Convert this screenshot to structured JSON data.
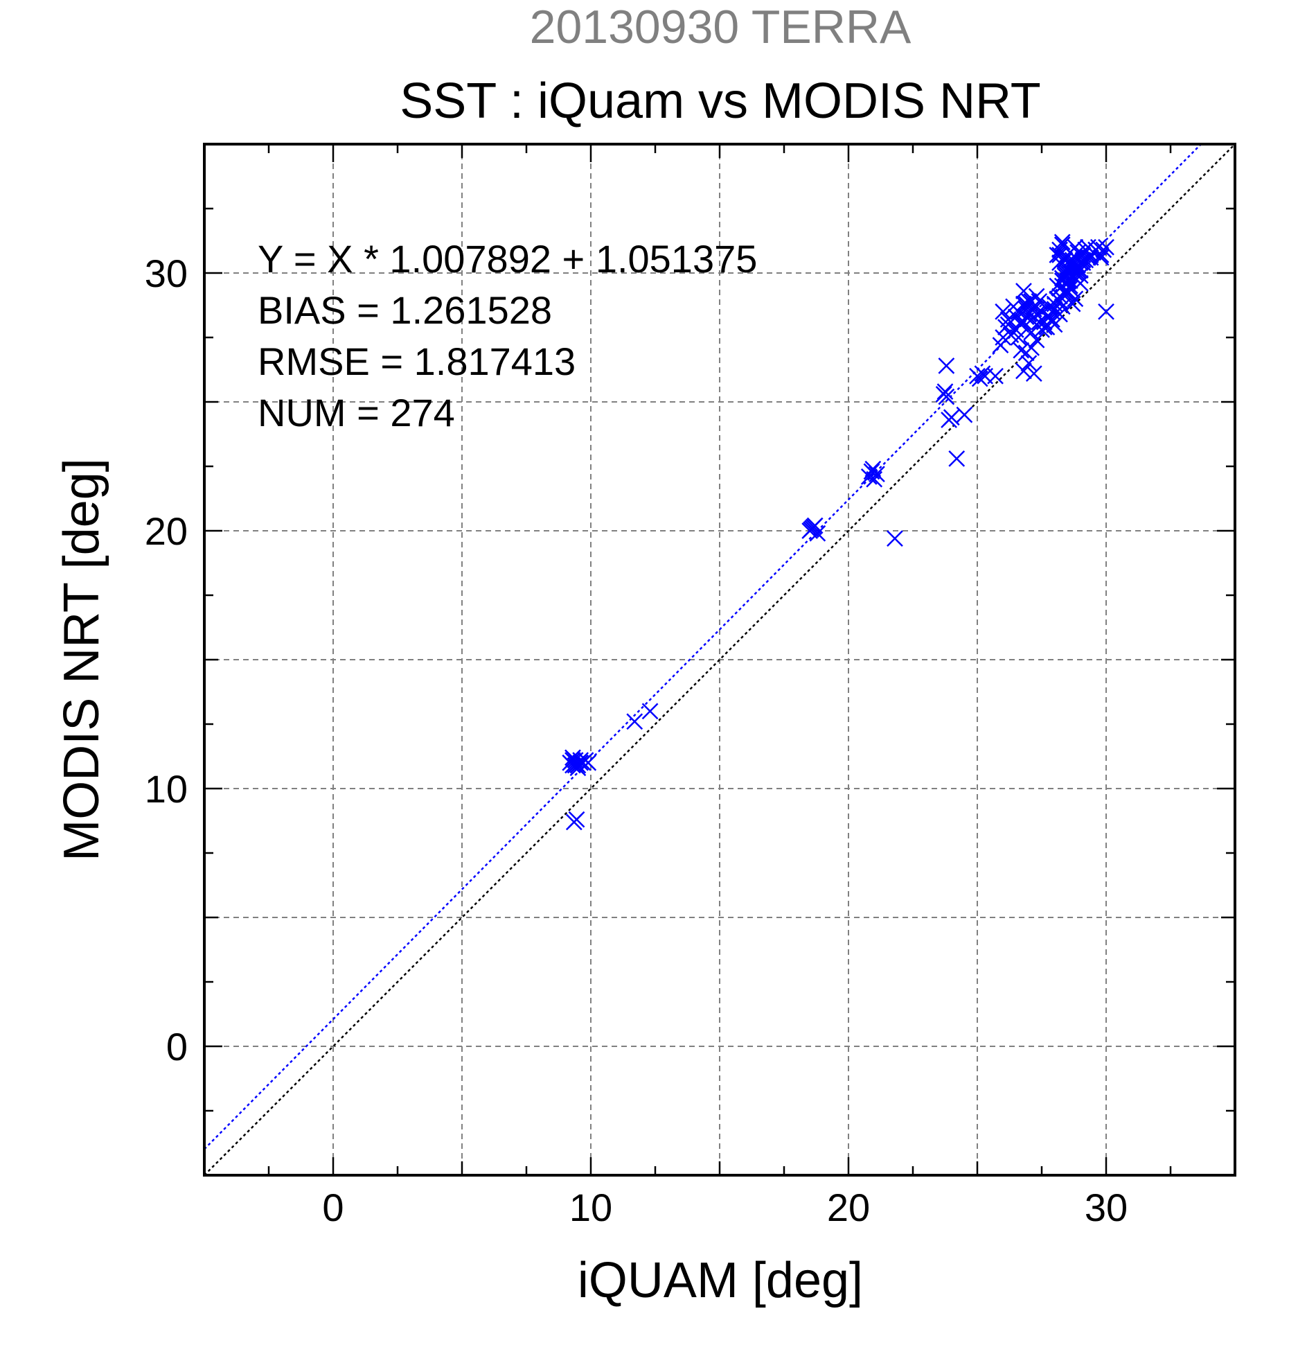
{
  "chart_data": {
    "type": "scatter",
    "supertitle": "20130930 TERRA",
    "title": "SST : iQuam vs MODIS NRT",
    "xlabel": "iQUAM [deg]",
    "ylabel": "MODIS NRT [deg]",
    "xlim": [
      -5,
      35
    ],
    "ylim": [
      -5,
      35
    ],
    "xticks": [
      0,
      10,
      20,
      30
    ],
    "yticks": [
      0,
      10,
      20,
      30
    ],
    "grid": true,
    "stats_text": [
      "Y = X * 1.007892 + 1.051375",
      "BIAS = 1.261528",
      "RMSE = 1.817413",
      "NUM = 274"
    ],
    "fit": {
      "slope": 1.007892,
      "intercept": 1.051375
    },
    "colors": {
      "supertitle": "#808080",
      "points": "#0000ff",
      "fit_line": "#0000ff",
      "identity_line": "#000000",
      "grid": "#808080"
    },
    "series": [
      {
        "marker": "x",
        "x": [
          9.2,
          9.3,
          9.4,
          9.5,
          9.6,
          9.7,
          9.8,
          9.9,
          9.3,
          9.5,
          9.4,
          9.6,
          9.35,
          9.45,
          9.3,
          9.45,
          11.7,
          12.3,
          18.5,
          18.6,
          18.7,
          18.8,
          18.55,
          18.65,
          20.8,
          20.9,
          21.0,
          21.1,
          20.95,
          21.8,
          23.7,
          23.8,
          23.75,
          23.8,
          23.9,
          24.0,
          24.2,
          24.5,
          25.0,
          25.1,
          25.2,
          25.3,
          25.7,
          25.9,
          26.0,
          26.1,
          26.2,
          26.3,
          26.0,
          26.2,
          26.4,
          26.5,
          26.6,
          26.7,
          26.8,
          26.9,
          27.0,
          27.1,
          27.2,
          27.3,
          27.4,
          26.8,
          27.0,
          27.2,
          26.9,
          27.1,
          27.3,
          26.7,
          27.5,
          27.6,
          27.7,
          27.8,
          27.9,
          28.0,
          28.1,
          28.2,
          28.3,
          28.4,
          28.5,
          28.6,
          28.7,
          28.8,
          28.9,
          29.0,
          29.1,
          29.2,
          29.3,
          29.4,
          29.5,
          29.6,
          29.7,
          29.8,
          29.9,
          28.1,
          28.3,
          28.5,
          28.7,
          28.2,
          28.4,
          28.6,
          28.8,
          28.3,
          28.5,
          28.7,
          28.4,
          28.2,
          28.4,
          28.6,
          28.1,
          28.5,
          28.3,
          28.6,
          28.2,
          28.8,
          29.0,
          28.9,
          29.1,
          28.0,
          28.2,
          28.4,
          28.6,
          28.8,
          28.3,
          28.5,
          28.7,
          28.4,
          28.6,
          27.0,
          27.2,
          27.1,
          27.3,
          26.9,
          26.8,
          27.4,
          27.6,
          27.5,
          27.7,
          27.8,
          28.9,
          29.1,
          29.3,
          29.5,
          29.2,
          29.4,
          29.6,
          29.0,
          29.8,
          30.0,
          26.5,
          26.7,
          26.9,
          27.1,
          26.6,
          26.8,
          28.0,
          28.2,
          27.9,
          28.1,
          28.3,
          28.5,
          28.7,
          28.9,
          28.6,
          28.4,
          28.2,
          28.8,
          29.0,
          28.5,
          30.0
        ],
        "y": [
          11.0,
          10.9,
          11.1,
          10.9,
          11.1,
          11.0,
          11.1,
          11.0,
          11.2,
          10.8,
          10.9,
          11.0,
          8.7,
          8.8,
          11.1,
          10.95,
          12.6,
          13.0,
          20.0,
          20.1,
          20.2,
          19.9,
          20.05,
          20.15,
          22.1,
          22.3,
          22.0,
          22.2,
          22.4,
          19.7,
          25.3,
          25.2,
          25.4,
          26.4,
          24.3,
          24.4,
          22.8,
          24.5,
          26.0,
          25.9,
          26.1,
          26.0,
          26.0,
          27.2,
          27.5,
          27.9,
          28.2,
          27.6,
          28.5,
          28.0,
          28.7,
          28.3,
          28.5,
          28.1,
          28.8,
          28.6,
          28.9,
          28.2,
          28.7,
          28.4,
          28.9,
          26.2,
          26.5,
          26.1,
          26.9,
          27.1,
          27.4,
          27.0,
          27.8,
          28.1,
          27.9,
          28.3,
          28.5,
          28.8,
          29.0,
          29.4,
          29.7,
          29.9,
          30.1,
          30.3,
          30.5,
          30.6,
          30.8,
          30.4,
          30.7,
          30.9,
          31.0,
          30.6,
          30.8,
          30.9,
          31.0,
          30.7,
          30.9,
          29.5,
          29.8,
          30.0,
          30.2,
          30.4,
          30.6,
          30.8,
          31.0,
          31.1,
          29.9,
          30.3,
          29.3,
          29.1,
          29.6,
          30.5,
          30.7,
          29.2,
          31.2,
          29.4,
          30.9,
          29.8,
          30.1,
          30.3,
          30.5,
          28.6,
          28.9,
          29.2,
          29.5,
          29.0,
          28.7,
          29.3,
          28.8,
          30.0,
          29.7,
          28.4,
          28.6,
          28.9,
          29.1,
          28.8,
          29.3,
          28.1,
          27.9,
          28.5,
          28.3,
          28.7,
          30.2,
          30.4,
          30.6,
          30.8,
          30.5,
          30.7,
          30.9,
          29.9,
          30.6,
          31.0,
          27.8,
          28.0,
          28.3,
          27.7,
          27.5,
          28.1,
          28.0,
          28.4,
          28.2,
          28.5,
          29.5,
          29.7,
          29.9,
          30.1,
          30.3,
          30.5,
          30.7,
          30.0,
          29.6,
          30.2,
          28.5
        ]
      }
    ]
  }
}
